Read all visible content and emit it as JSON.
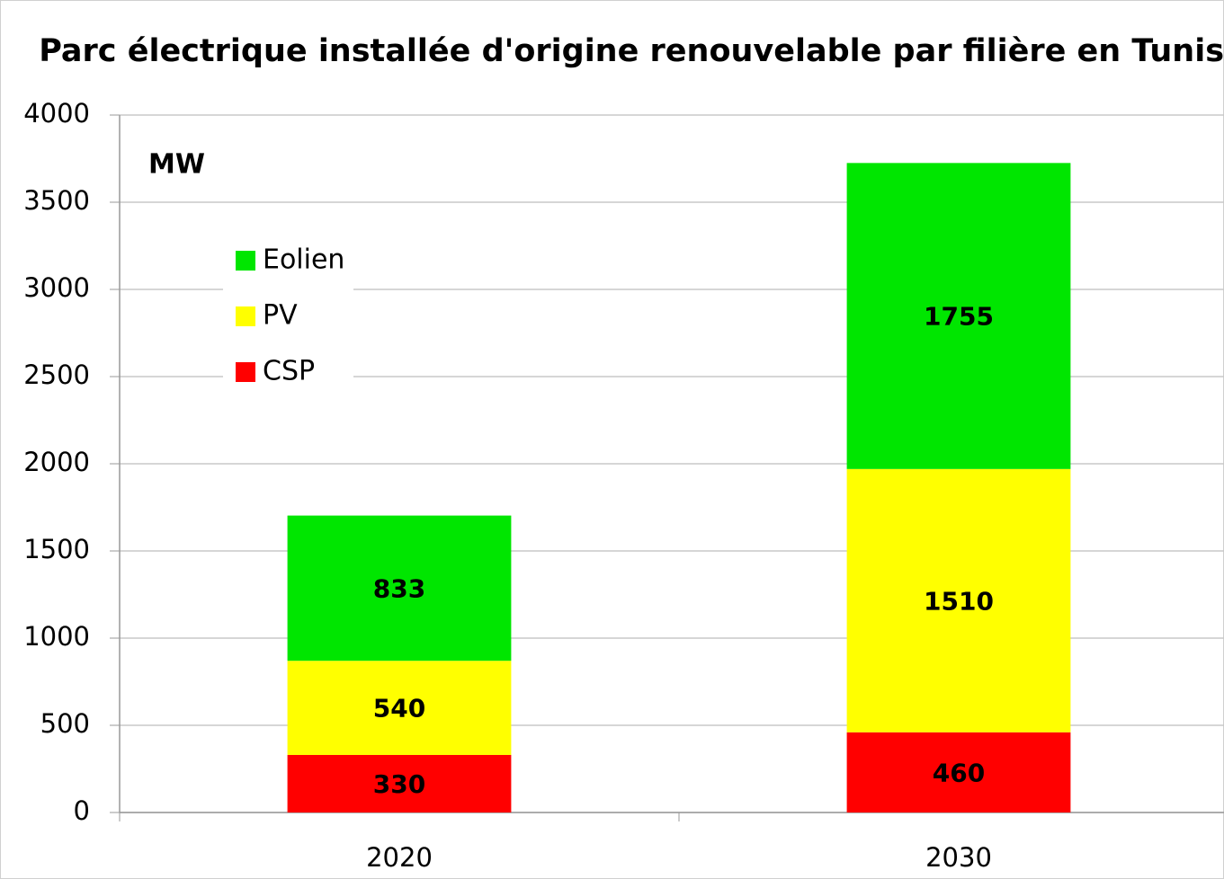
{
  "chart_data": {
    "type": "stacked_bar",
    "title": "Parc électrique installée d'origine renouvelable par filière  en Tunisie",
    "annotation": "MW",
    "categories": [
      "2020",
      "2030"
    ],
    "series": [
      {
        "name": "CSP",
        "color": "#ff0000",
        "values": [
          330,
          460
        ]
      },
      {
        "name": "PV",
        "color": "#ffff00",
        "values": [
          540,
          1510
        ]
      },
      {
        "name": "Eolien",
        "color": "#00e600",
        "values": [
          833,
          1755
        ]
      }
    ],
    "ylim": [
      0,
      4000
    ],
    "yticks": [
      0,
      500,
      1000,
      1500,
      2000,
      2500,
      3000,
      3500,
      4000
    ],
    "grid": true
  }
}
